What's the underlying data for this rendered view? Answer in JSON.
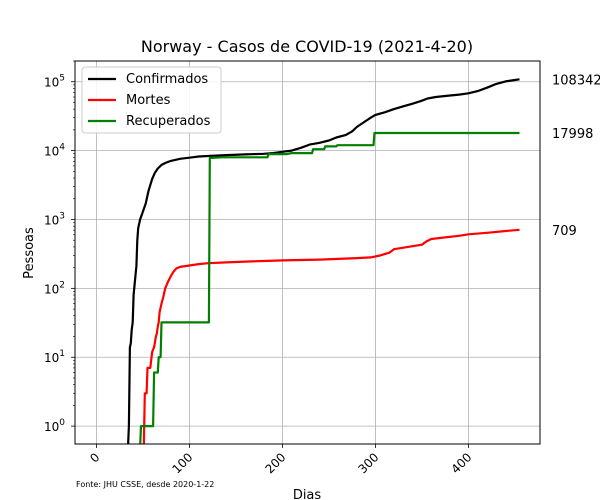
{
  "chart_data": {
    "type": "line",
    "title": "Norway - Casos de COVID-19 (2021-4-20)",
    "xlabel": "Dias",
    "ylabel": "Pessoas",
    "yscale": "log",
    "xlim": [
      -23,
      477
    ],
    "ylim": [
      0.55,
      200000
    ],
    "xticks": [
      0,
      100,
      200,
      300,
      400
    ],
    "yticks": [
      {
        "value": 1,
        "label": "10",
        "exp": "0"
      },
      {
        "value": 10,
        "label": "10",
        "exp": "1"
      },
      {
        "value": 100,
        "label": "10",
        "exp": "2"
      },
      {
        "value": 1000,
        "label": "10",
        "exp": "3"
      },
      {
        "value": 10000,
        "label": "10",
        "exp": "4"
      },
      {
        "value": 100000,
        "label": "10",
        "exp": "5"
      }
    ],
    "grid": true,
    "legend_position": "top-left",
    "footnote": "Fonte: JHU CSSE, desde 2020-1-22",
    "series": [
      {
        "name": "Confirmados",
        "color": "#000000",
        "end_label": "108342",
        "points": [
          [
            34,
            0.5
          ],
          [
            35,
            1
          ],
          [
            36,
            14
          ],
          [
            37,
            16
          ],
          [
            38,
            25
          ],
          [
            39,
            32
          ],
          [
            40,
            80
          ],
          [
            42,
            150
          ],
          [
            43,
            210
          ],
          [
            44,
            500
          ],
          [
            45,
            750
          ],
          [
            47,
            1000
          ],
          [
            50,
            1300
          ],
          [
            53,
            1700
          ],
          [
            56,
            2600
          ],
          [
            60,
            3900
          ],
          [
            63,
            4800
          ],
          [
            66,
            5500
          ],
          [
            70,
            6200
          ],
          [
            75,
            6700
          ],
          [
            80,
            7100
          ],
          [
            90,
            7600
          ],
          [
            100,
            7900
          ],
          [
            110,
            8200
          ],
          [
            120,
            8350
          ],
          [
            140,
            8600
          ],
          [
            160,
            8800
          ],
          [
            180,
            9000
          ],
          [
            190,
            9200
          ],
          [
            200,
            9600
          ],
          [
            210,
            10000
          ],
          [
            215,
            10500
          ],
          [
            220,
            11000
          ],
          [
            230,
            12300
          ],
          [
            240,
            13000
          ],
          [
            250,
            14000
          ],
          [
            258,
            15500
          ],
          [
            268,
            16800
          ],
          [
            275,
            19000
          ],
          [
            280,
            22000
          ],
          [
            288,
            26000
          ],
          [
            295,
            30000
          ],
          [
            300,
            33000
          ],
          [
            310,
            36000
          ],
          [
            320,
            40000
          ],
          [
            330,
            44000
          ],
          [
            340,
            48000
          ],
          [
            350,
            53000
          ],
          [
            356,
            57000
          ],
          [
            365,
            60000
          ],
          [
            375,
            62000
          ],
          [
            390,
            65000
          ],
          [
            400,
            68000
          ],
          [
            410,
            73000
          ],
          [
            420,
            82000
          ],
          [
            430,
            93000
          ],
          [
            440,
            101000
          ],
          [
            450,
            106000
          ],
          [
            455,
            108342
          ]
        ]
      },
      {
        "name": "Mortes",
        "color": "#ff0000",
        "end_label": "709",
        "points": [
          [
            51,
            0.5
          ],
          [
            52,
            3
          ],
          [
            54,
            3
          ],
          [
            55,
            7
          ],
          [
            58,
            7
          ],
          [
            60,
            12
          ],
          [
            62,
            14
          ],
          [
            64,
            20
          ],
          [
            65,
            22
          ],
          [
            66,
            28
          ],
          [
            67,
            32
          ],
          [
            68,
            45
          ],
          [
            70,
            60
          ],
          [
            72,
            75
          ],
          [
            74,
            100
          ],
          [
            77,
            125
          ],
          [
            80,
            150
          ],
          [
            83,
            175
          ],
          [
            86,
            195
          ],
          [
            90,
            205
          ],
          [
            100,
            215
          ],
          [
            110,
            225
          ],
          [
            120,
            232
          ],
          [
            140,
            238
          ],
          [
            160,
            245
          ],
          [
            180,
            250
          ],
          [
            200,
            255
          ],
          [
            220,
            258
          ],
          [
            240,
            262
          ],
          [
            260,
            268
          ],
          [
            280,
            275
          ],
          [
            295,
            282
          ],
          [
            305,
            300
          ],
          [
            315,
            330
          ],
          [
            320,
            370
          ],
          [
            330,
            390
          ],
          [
            340,
            410
          ],
          [
            350,
            430
          ],
          [
            355,
            480
          ],
          [
            360,
            520
          ],
          [
            375,
            550
          ],
          [
            390,
            580
          ],
          [
            400,
            610
          ],
          [
            420,
            640
          ],
          [
            440,
            680
          ],
          [
            455,
            709
          ]
        ]
      },
      {
        "name": "Recuperados",
        "color": "#008000",
        "end_label": "17998",
        "points": [
          [
            47,
            0.5
          ],
          [
            48,
            1
          ],
          [
            61,
            1
          ],
          [
            62,
            6
          ],
          [
            66,
            6
          ],
          [
            67,
            10
          ],
          [
            69,
            10
          ],
          [
            70,
            32
          ],
          [
            121,
            32
          ],
          [
            122,
            7800
          ],
          [
            135,
            8000
          ],
          [
            184,
            8000
          ],
          [
            185,
            8900
          ],
          [
            205,
            8900
          ],
          [
            210,
            9200
          ],
          [
            232,
            9200
          ],
          [
            233,
            10500
          ],
          [
            245,
            10500
          ],
          [
            246,
            11500
          ],
          [
            258,
            11500
          ],
          [
            259,
            12000
          ],
          [
            298,
            12000
          ],
          [
            299,
            17998
          ],
          [
            455,
            17998
          ]
        ]
      }
    ]
  }
}
